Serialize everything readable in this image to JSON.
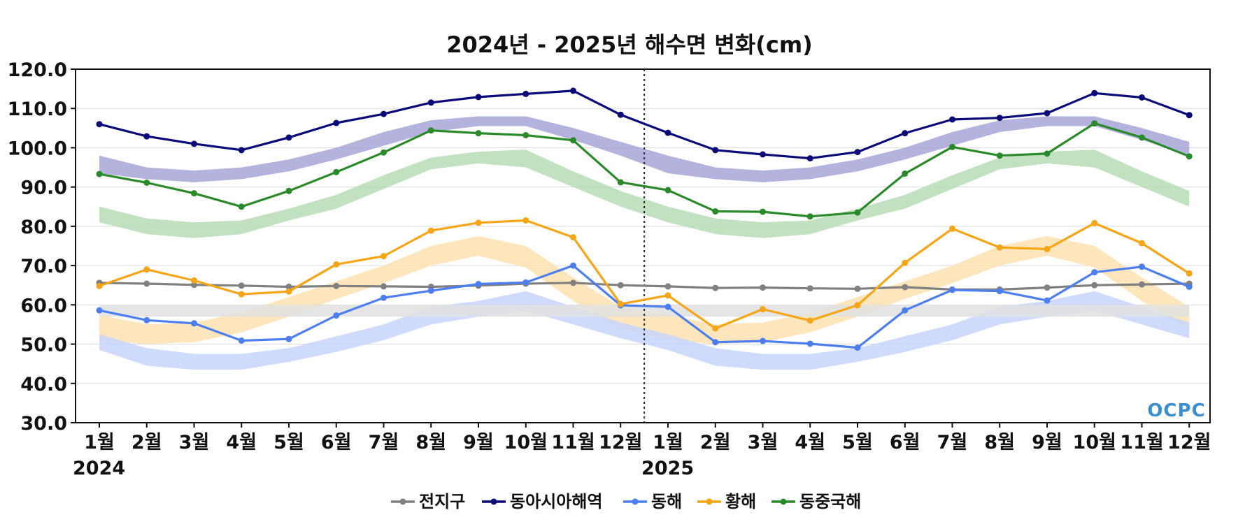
{
  "chart_data": {
    "type": "line",
    "title": "2024년 - 2025년 해수면 변화(cm)",
    "ylim": [
      30,
      120
    ],
    "yticks": [
      "30.0",
      "40.0",
      "50.0",
      "60.0",
      "70.0",
      "80.0",
      "90.0",
      "100.0",
      "110.0",
      "120.0"
    ],
    "ytick_values": [
      30,
      40,
      50,
      60,
      70,
      80,
      90,
      100,
      110,
      120
    ],
    "categories": [
      "1월",
      "2월",
      "3월",
      "4월",
      "5월",
      "6월",
      "7월",
      "8월",
      "9월",
      "10월",
      "11월",
      "12월",
      "1월",
      "2월",
      "3월",
      "4월",
      "5월",
      "6월",
      "7월",
      "8월",
      "9월",
      "10월",
      "11월",
      "12월"
    ],
    "year_labels": [
      {
        "index": 0,
        "label": "2024"
      },
      {
        "index": 12,
        "label": "2025"
      }
    ],
    "divider_after_index": 11,
    "grid": true,
    "logo": "OCPC",
    "legend_position": "bottom-center",
    "series": [
      {
        "name": "전지구",
        "color": "#808080",
        "values": [
          65.6,
          65.4,
          65.1,
          64.9,
          64.6,
          64.8,
          64.7,
          64.6,
          64.9,
          65.4,
          65.6,
          65.0,
          64.7,
          64.3,
          64.4,
          64.2,
          64.1,
          64.5,
          63.9,
          63.9,
          64.4,
          65.0,
          65.2,
          65.4
        ]
      },
      {
        "name": "동아시아해역",
        "color": "#0a0a78",
        "values": [
          106.0,
          102.9,
          101.0,
          99.4,
          102.6,
          106.3,
          108.6,
          111.5,
          112.9,
          113.7,
          114.5,
          108.4,
          103.8,
          99.4,
          98.3,
          97.3,
          98.9,
          103.7,
          107.2,
          107.6,
          108.8,
          113.9,
          112.8,
          108.3
        ]
      },
      {
        "name": "동해",
        "color": "#4d7ef0",
        "values": [
          58.6,
          56.1,
          55.3,
          50.9,
          51.3,
          57.3,
          61.8,
          63.6,
          65.3,
          65.7,
          70.0,
          59.9,
          59.5,
          50.5,
          50.8,
          50.1,
          49.1,
          58.6,
          63.8,
          63.5,
          61.1,
          68.3,
          69.7,
          64.6
        ]
      },
      {
        "name": "황해",
        "color": "#f5a516",
        "values": [
          64.8,
          69.0,
          66.2,
          62.7,
          63.4,
          70.3,
          72.4,
          78.9,
          80.9,
          81.5,
          77.2,
          60.2,
          62.4,
          54.0,
          58.9,
          56.0,
          59.9,
          70.7,
          79.4,
          74.6,
          74.2,
          80.8,
          75.7,
          68.0
        ]
      },
      {
        "name": "동중국해",
        "color": "#2a8a2a",
        "values": [
          93.3,
          91.1,
          88.4,
          85.0,
          89.0,
          93.8,
          98.8,
          104.4,
          103.7,
          103.2,
          101.9,
          91.2,
          89.2,
          83.8,
          83.7,
          82.5,
          83.5,
          93.4,
          100.2,
          98.0,
          98.5,
          106.2,
          102.6,
          97.8
        ]
      }
    ],
    "climatology_bands": [
      {
        "name": "동아시아해역",
        "color": "#a6a6d8",
        "lower": [
          93.5,
          92.0,
          91.2,
          92.0,
          94.0,
          97.0,
          100.5,
          104.0,
          105.5,
          105.5,
          102.0,
          98.0,
          93.5,
          92.0,
          91.2,
          92.0,
          94.0,
          97.0,
          100.5,
          104.0,
          105.5,
          105.5,
          102.0,
          98.0
        ],
        "upper": [
          98.0,
          95.0,
          94.2,
          95.0,
          97.0,
          100.0,
          104.0,
          107.0,
          108.0,
          108.0,
          105.0,
          101.5,
          98.0,
          95.0,
          94.2,
          95.0,
          97.0,
          100.0,
          104.0,
          107.0,
          108.0,
          108.0,
          105.0,
          101.5
        ]
      },
      {
        "name": "동중국해",
        "color": "#b6dcb6",
        "lower": [
          81.0,
          78.0,
          77.0,
          78.0,
          81.5,
          84.5,
          89.5,
          94.5,
          96.0,
          95.0,
          90.0,
          85.0,
          81.0,
          78.0,
          77.0,
          78.0,
          81.5,
          84.5,
          89.5,
          94.5,
          96.0,
          95.0,
          90.0,
          85.0
        ],
        "upper": [
          85.0,
          82.0,
          81.0,
          81.5,
          84.5,
          88.0,
          93.0,
          97.5,
          99.0,
          99.5,
          94.0,
          89.0,
          85.0,
          82.0,
          81.0,
          81.5,
          84.5,
          88.0,
          93.0,
          97.5,
          99.0,
          99.5,
          94.0,
          89.0
        ]
      },
      {
        "name": "황해",
        "color": "#fde2b0",
        "lower": [
          51.0,
          50.0,
          50.5,
          53.0,
          57.0,
          61.5,
          65.5,
          70.0,
          72.5,
          69.5,
          61.0,
          54.0,
          51.0,
          50.0,
          50.5,
          53.0,
          57.0,
          61.5,
          65.5,
          70.0,
          72.5,
          69.5,
          61.0,
          54.0
        ],
        "upper": [
          57.5,
          55.0,
          55.5,
          58.0,
          62.0,
          66.0,
          70.0,
          75.0,
          77.5,
          75.0,
          67.0,
          59.5,
          57.5,
          55.0,
          55.5,
          58.0,
          62.0,
          66.0,
          70.0,
          75.0,
          77.5,
          75.0,
          67.0,
          59.5
        ]
      },
      {
        "name": "동해",
        "color": "#c5d5fd",
        "lower": [
          48.5,
          44.5,
          43.5,
          43.5,
          45.5,
          48.0,
          51.0,
          55.0,
          57.0,
          58.5,
          55.0,
          51.5,
          48.5,
          44.5,
          43.5,
          43.5,
          45.5,
          48.0,
          51.0,
          55.0,
          57.0,
          58.5,
          55.0,
          51.5
        ],
        "upper": [
          52.5,
          49.0,
          47.5,
          47.5,
          49.0,
          52.0,
          55.0,
          59.5,
          61.0,
          63.5,
          59.5,
          55.5,
          52.5,
          49.0,
          47.5,
          47.5,
          49.0,
          52.0,
          55.0,
          59.5,
          61.0,
          63.5,
          59.5,
          55.5
        ]
      },
      {
        "name": "전지구",
        "color": "#e0e0e0",
        "lower": [
          57.0,
          57.0,
          57.0,
          57.0,
          57.0,
          57.0,
          57.0,
          57.0,
          57.0,
          57.0,
          57.0,
          57.0,
          57.0,
          57.0,
          57.0,
          57.0,
          57.0,
          57.0,
          57.0,
          57.0,
          57.0,
          57.0,
          57.0,
          57.0
        ],
        "upper": [
          60.0,
          60.0,
          60.0,
          60.0,
          60.0,
          60.0,
          60.0,
          60.0,
          60.0,
          60.0,
          60.0,
          60.0,
          60.0,
          60.0,
          60.0,
          60.0,
          60.0,
          60.0,
          60.0,
          60.0,
          60.0,
          60.0,
          60.0,
          60.0
        ]
      }
    ]
  }
}
